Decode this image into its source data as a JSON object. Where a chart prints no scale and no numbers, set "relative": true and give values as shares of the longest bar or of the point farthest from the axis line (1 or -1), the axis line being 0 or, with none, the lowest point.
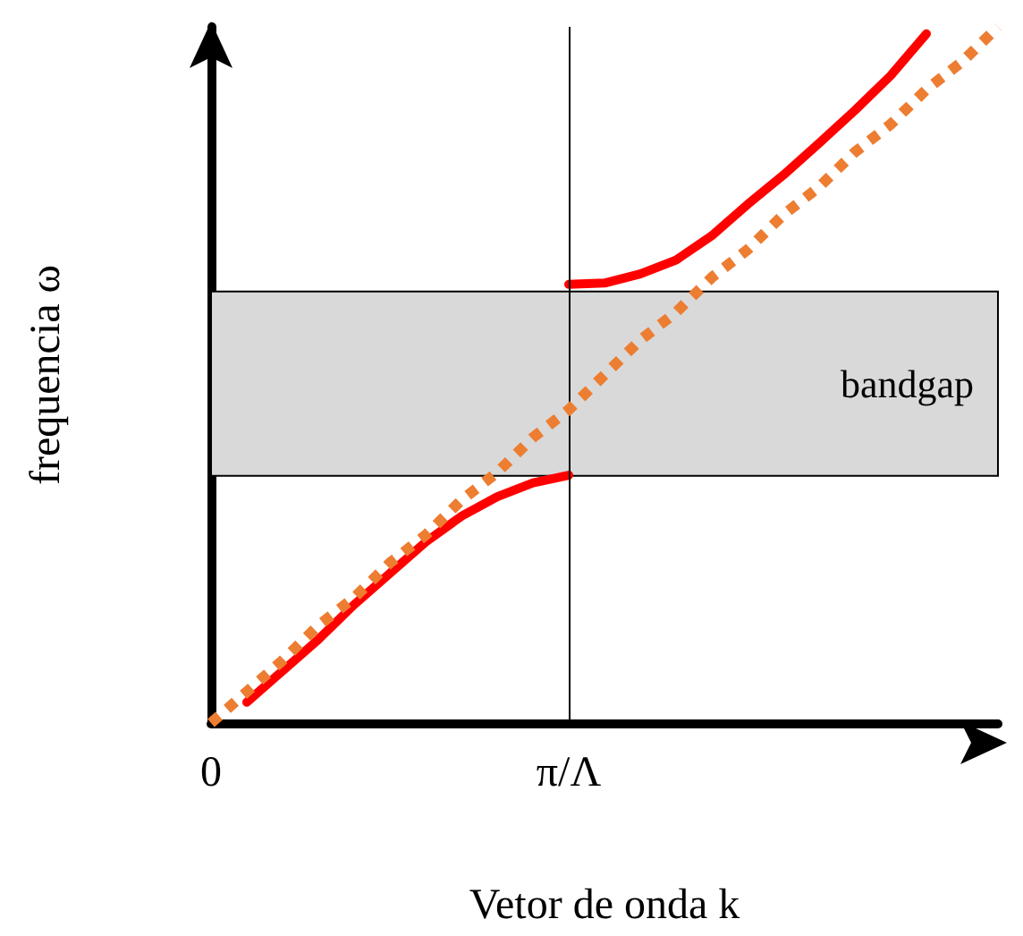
{
  "chart_data": {
    "type": "line",
    "relative": true,
    "xlabel": "Vetor de onda k",
    "ylabel": "frequencia ω",
    "tick_labels": "x",
    "grid": false,
    "marker": "none",
    "categories": [
      "0",
      null,
      null,
      null,
      null,
      null,
      null,
      null,
      null,
      null,
      "π/Λ",
      null,
      null,
      null,
      null,
      null,
      null,
      null,
      null,
      null,
      null,
      null,
      null
    ],
    "series": [
      {
        "color": "#ff0000",
        "line_style": "solid",
        "values": [
          null,
          0.03,
          0.075,
          0.12,
          0.17,
          0.215,
          0.26,
          0.297,
          0.325,
          0.345,
          0.356,
          null,
          null,
          null,
          null,
          null,
          null,
          null,
          null,
          null,
          null,
          null,
          null
        ]
      },
      {
        "color": "#ff0000",
        "line_style": "solid",
        "values": [
          null,
          null,
          null,
          null,
          null,
          null,
          null,
          null,
          null,
          null,
          0.63,
          0.632,
          0.645,
          0.665,
          0.7,
          0.745,
          0.787,
          0.833,
          0.88,
          0.93,
          0.99,
          null,
          null
        ]
      },
      {
        "color": "#ed7d31",
        "line_style": "dotted",
        "values": [
          0,
          0.045,
          0.09,
          0.14,
          0.18,
          0.23,
          0.27,
          0.32,
          0.36,
          0.41,
          0.45,
          0.5,
          0.55,
          0.59,
          0.64,
          0.68,
          0.73,
          0.77,
          0.82,
          0.86,
          0.91,
          0.95,
          1.0
        ]
      }
    ],
    "bands": [
      {
        "axis": "y",
        "from": 0.355,
        "to": 0.62,
        "label": "bandgap",
        "color": "#d9d9d9"
      }
    ],
    "ref_lines": [
      {
        "axis": "x",
        "value": "π/Λ",
        "color": "#000000"
      }
    ]
  }
}
